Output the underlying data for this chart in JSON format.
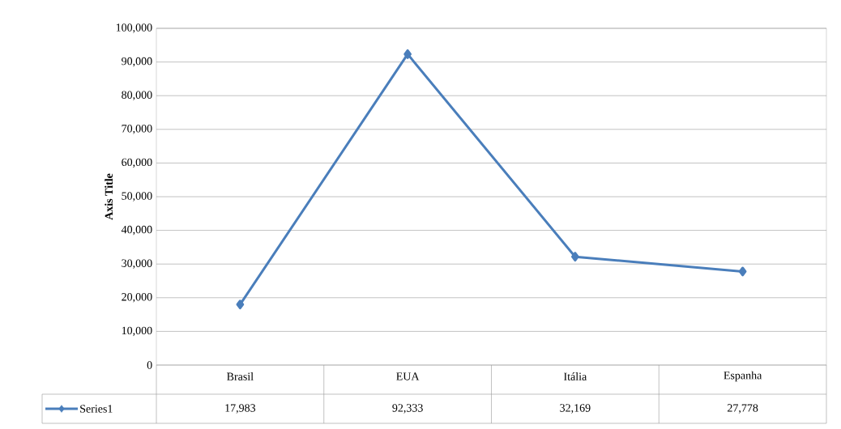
{
  "chart_data": {
    "type": "line",
    "ylabel": "Axis Title",
    "categories": [
      "Brasil",
      "EUA",
      "Itália",
      "Espanha"
    ],
    "series": [
      {
        "name": "Series1",
        "color": "#4a7ebb",
        "values": [
          17983,
          92333,
          32169,
          27778
        ],
        "value_labels": [
          "17,983",
          "92,333",
          "32,169",
          "27,778"
        ]
      }
    ],
    "ylim": [
      0,
      100000
    ],
    "yticks": [
      0,
      {
        "value": 10000,
        "label": "10,000"
      },
      {
        "value": 20000,
        "label": "20,000"
      },
      {
        "value": 30000,
        "label": "30,000"
      },
      {
        "value": 40000,
        "label": "40,000"
      },
      {
        "value": 50000,
        "label": "50,000"
      },
      {
        "value": 60000,
        "label": "60,000"
      },
      {
        "value": 70000,
        "label": "70,000"
      },
      {
        "value": 80000,
        "label": "80,000"
      },
      {
        "value": 90000,
        "label": "90,000"
      },
      {
        "value": 100000,
        "label": "100,000"
      }
    ],
    "grid": "y",
    "legend": "bottom",
    "marker": "diamond",
    "line_style": "solid"
  }
}
